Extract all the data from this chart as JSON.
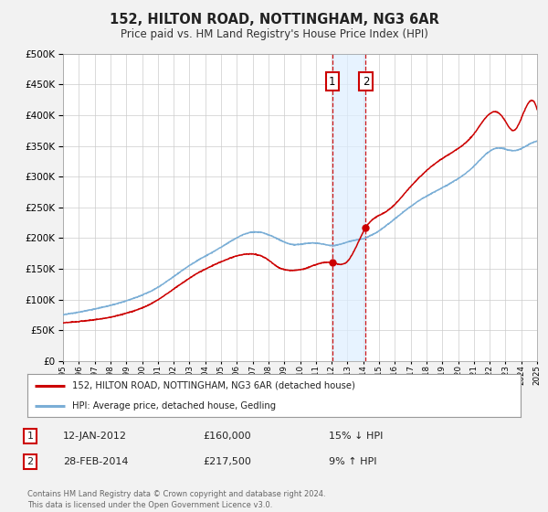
{
  "title": "152, HILTON ROAD, NOTTINGHAM, NG3 6AR",
  "subtitle": "Price paid vs. HM Land Registry's House Price Index (HPI)",
  "legend_line1": "152, HILTON ROAD, NOTTINGHAM, NG3 6AR (detached house)",
  "legend_line2": "HPI: Average price, detached house, Gedling",
  "red_color": "#cc0000",
  "blue_color": "#7aaed6",
  "point1_date": "12-JAN-2012",
  "point1_price": 160000,
  "point1_label": "£160,000",
  "point1_hpi": "15% ↓ HPI",
  "point2_date": "28-FEB-2014",
  "point2_price": 217500,
  "point2_label": "£217,500",
  "point2_hpi": "9% ↑ HPI",
  "point1_x": 2012.04,
  "point2_x": 2014.16,
  "footnote": "Contains HM Land Registry data © Crown copyright and database right 2024.\nThis data is licensed under the Open Government Licence v3.0.",
  "xmin": 1995,
  "xmax": 2025,
  "ymin": 0,
  "ymax": 500000,
  "background_color": "#f2f2f2",
  "plot_bg_color": "#ffffff",
  "shade_color": "#ddeeff"
}
